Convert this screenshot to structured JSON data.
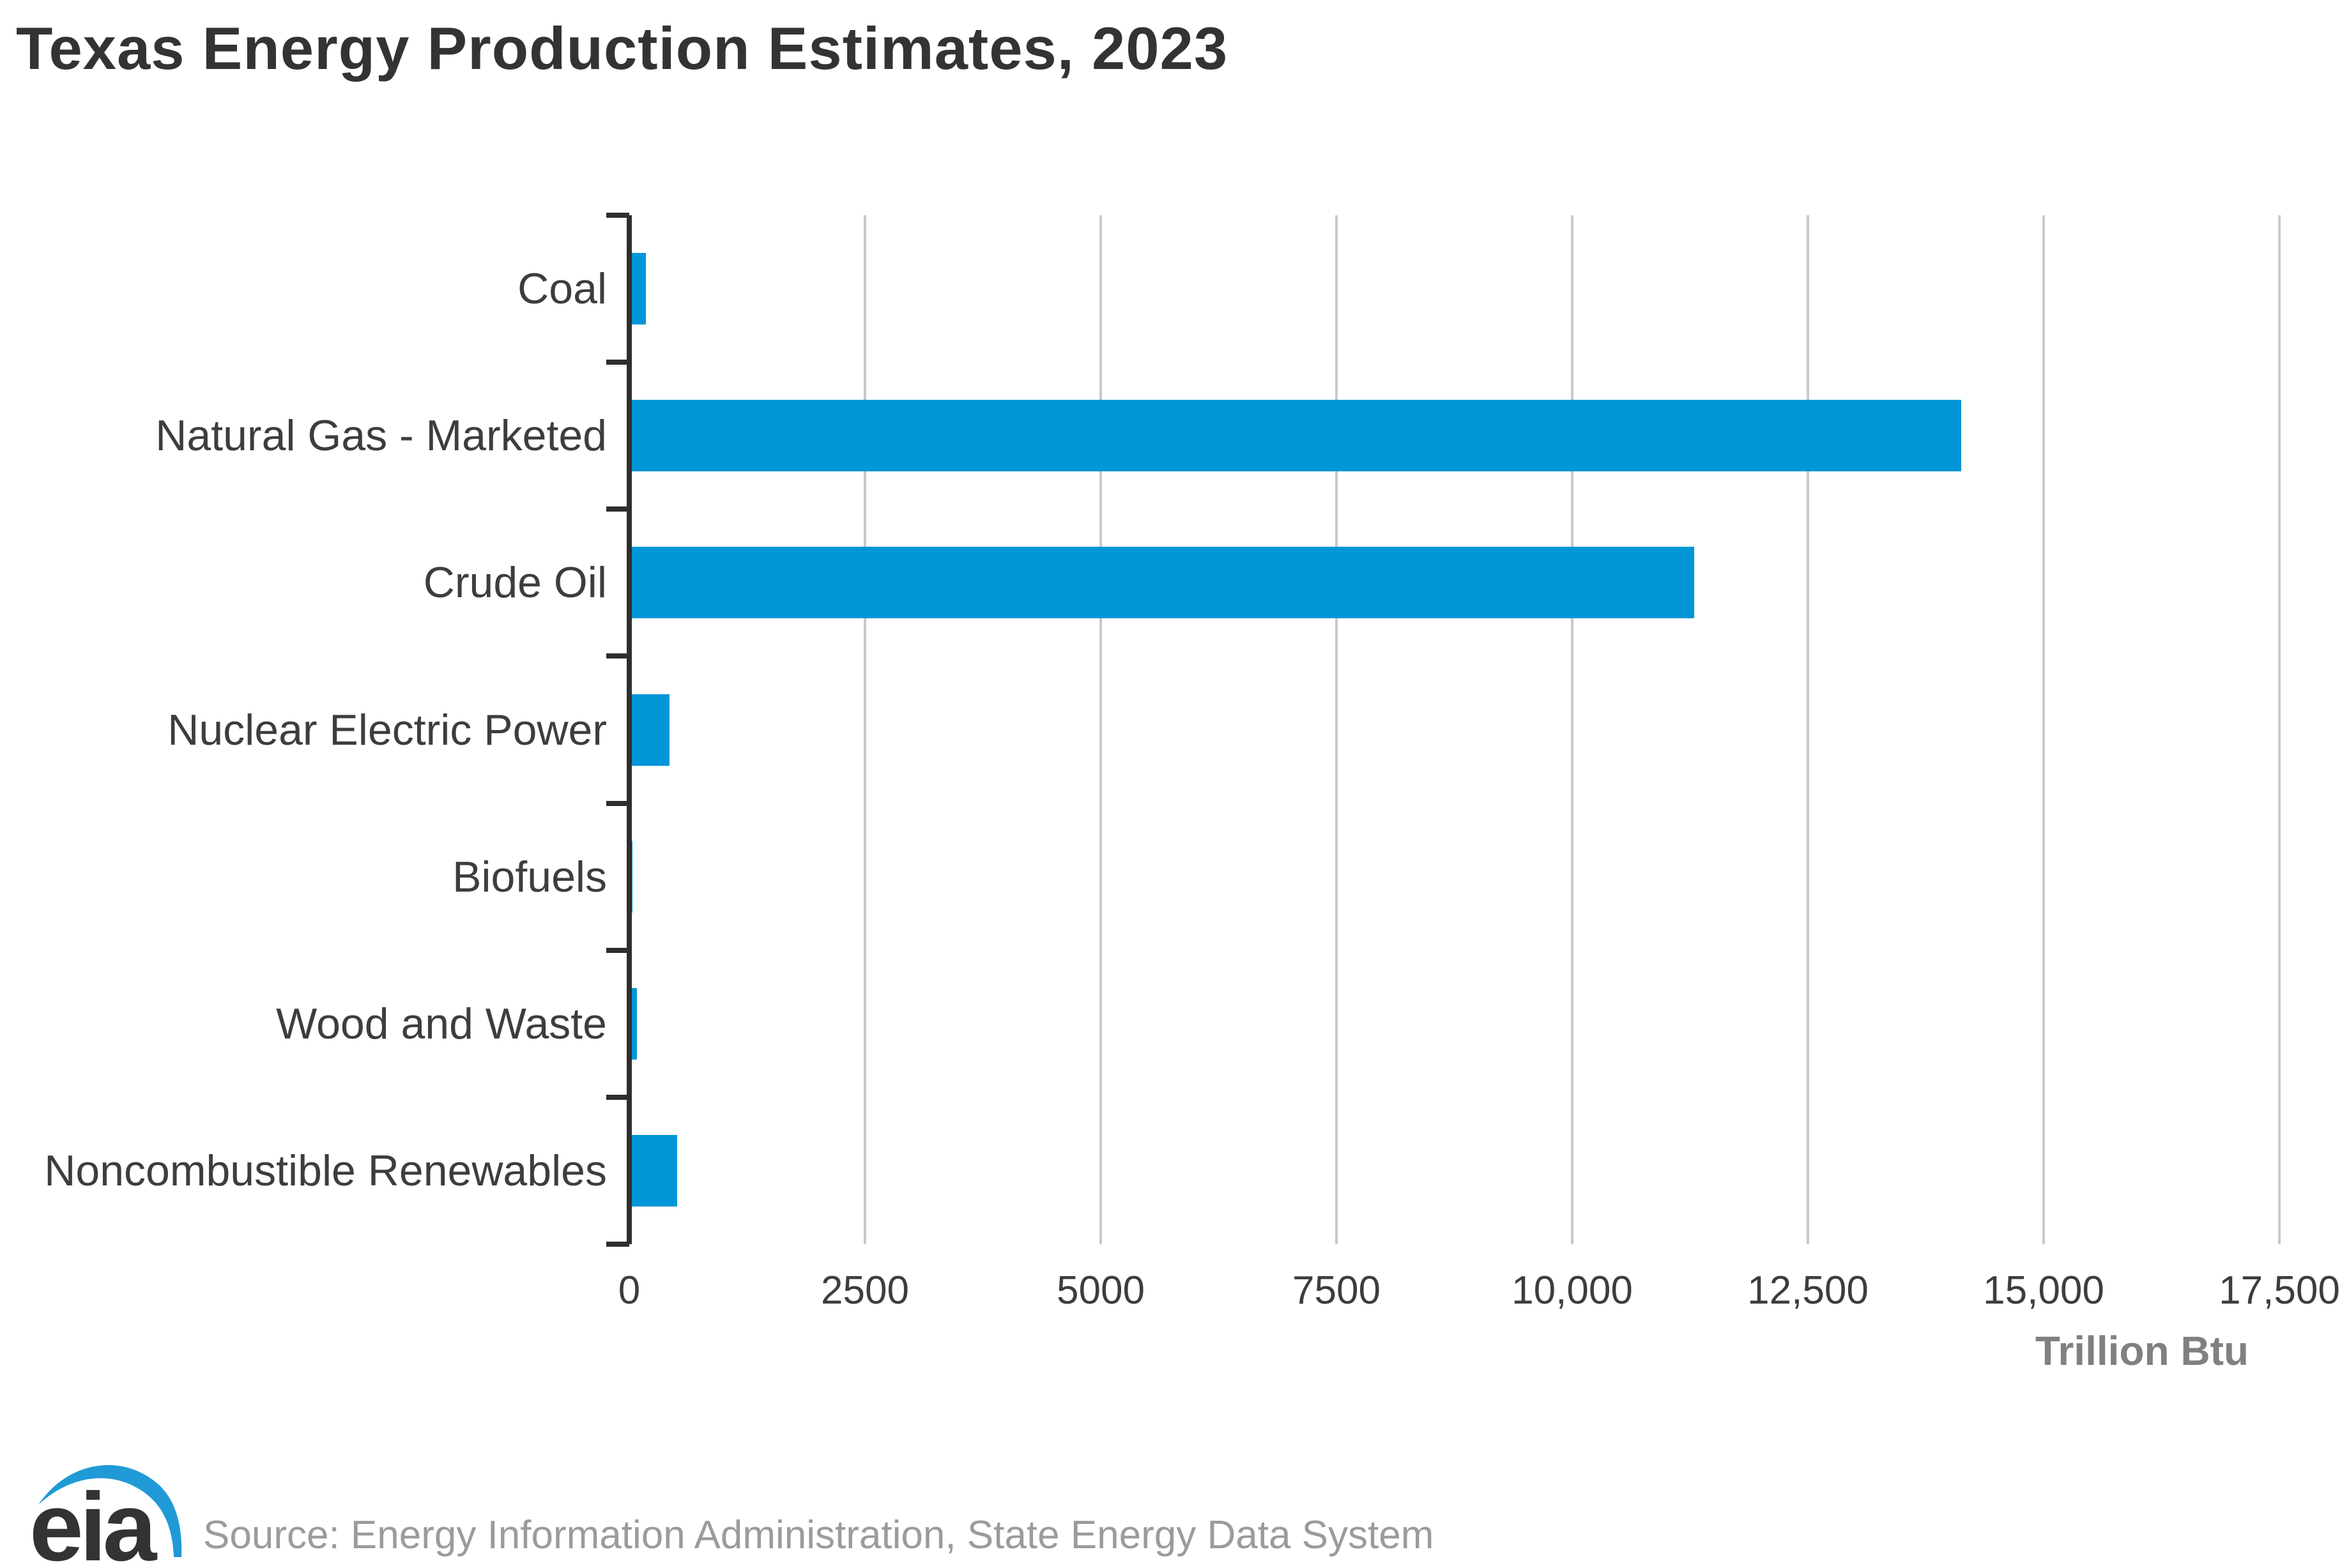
{
  "title": "Texas Energy Production Estimates, 2023",
  "source_line": "Source: Energy Information Administration, State Energy Data System",
  "logo": {
    "text": "eia"
  },
  "colors": {
    "bar": "#0096d7",
    "axis": "#2e2e2e",
    "grid": "#c9c9c9",
    "title_text": "#333333",
    "category_label": "#3d3d3d",
    "tick_label": "#3d3d3d",
    "axis_title": "#808080",
    "source_text": "#9b9b9b",
    "logo_blue": "#1f9ad6",
    "logo_text": "#333333"
  },
  "chart_data": {
    "type": "bar",
    "orientation": "horizontal",
    "title": "Texas Energy Production Estimates, 2023",
    "categories": [
      "Coal",
      "Natural Gas - Marketed",
      "Crude Oil",
      "Nuclear Electric Power",
      "Biofuels",
      "Wood and Waste",
      "Noncombustible Renewables"
    ],
    "values": [
      150,
      14100,
      11270,
      400,
      10,
      55,
      480
    ],
    "xlabel": "Trillion Btu",
    "ylabel": "",
    "xlim": [
      0,
      17500
    ],
    "unit": "Trillion Btu",
    "grid": "vertical-gridlines-on",
    "legend": "none",
    "x_ticks": [
      {
        "label": "0",
        "value": 0
      },
      {
        "label": "2500",
        "value": 2500
      },
      {
        "label": "5000",
        "value": 5000
      },
      {
        "label": "7500",
        "value": 7500
      },
      {
        "label": "10,000",
        "value": 10000
      },
      {
        "label": "12,500",
        "value": 12500
      },
      {
        "label": "15,000",
        "value": 15000
      },
      {
        "label": "17,500",
        "value": 17500
      }
    ]
  }
}
